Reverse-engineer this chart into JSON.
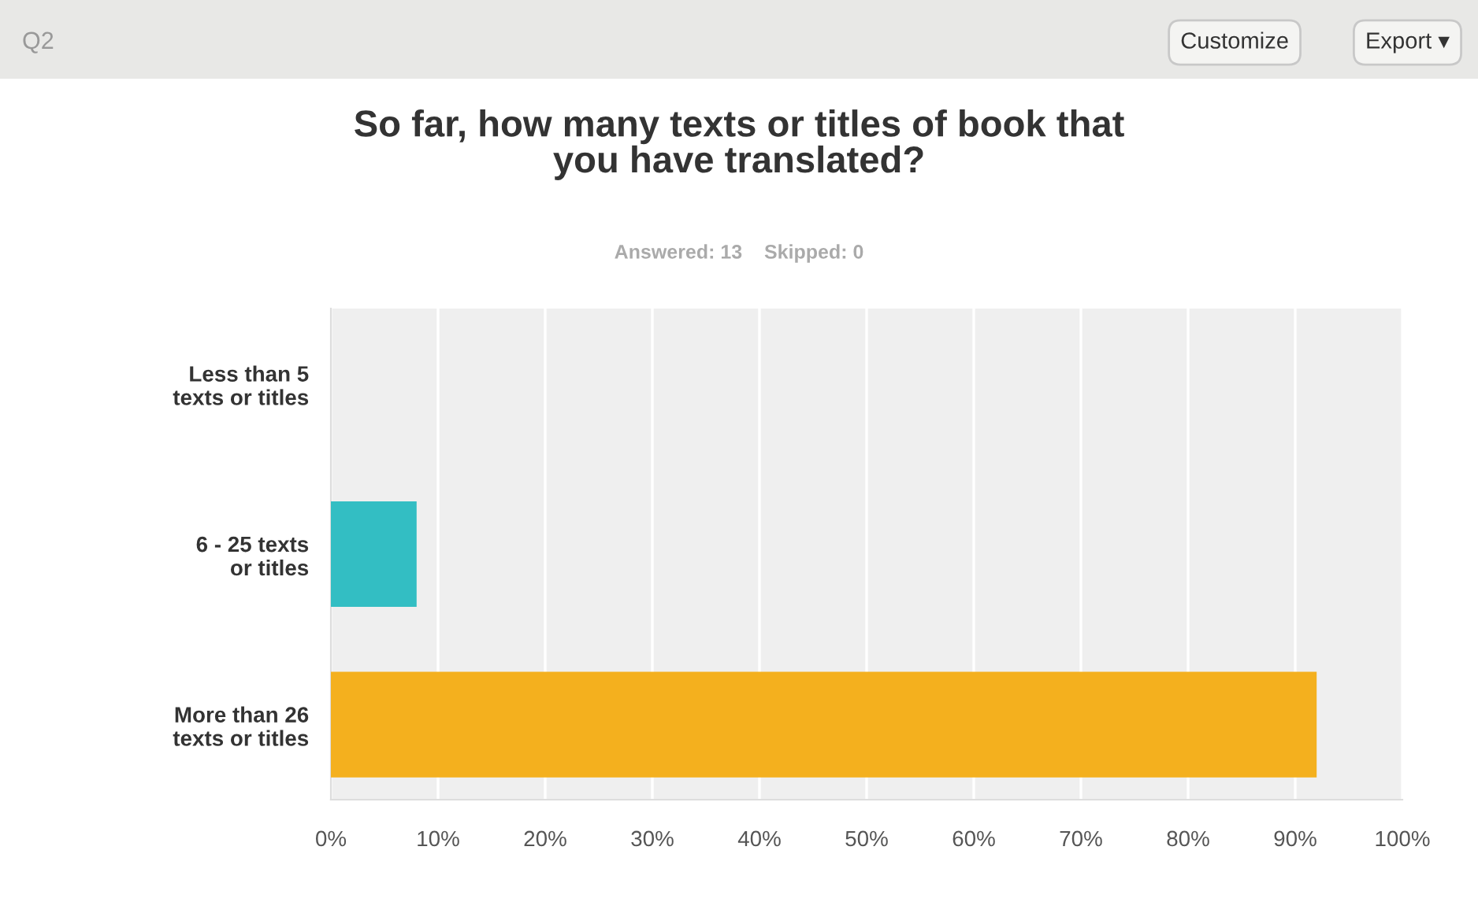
{
  "chart_data": {
    "type": "bar",
    "orientation": "horizontal",
    "title": "So far, how many texts or titles of book that\nyou have translated?",
    "subtitle": "Answered: 13    Skipped: 0",
    "annotations": [
      "Q2",
      "Customize",
      "Export ▾"
    ],
    "categories": [
      "Less than 5\ntexts or titles",
      "6 - 25 texts\nor titles",
      "More than 26\ntexts or titles"
    ],
    "values": [
      0,
      8,
      92
    ],
    "colors": [
      "#33bec3",
      "#33bec3",
      "#f4b01e"
    ],
    "xlim": [
      0,
      100
    ],
    "xticks": [
      {
        "value": 0,
        "label": "0%"
      },
      {
        "value": 10,
        "label": "10%"
      },
      {
        "value": 20,
        "label": "20%"
      },
      {
        "value": 30,
        "label": "30%"
      },
      {
        "value": 40,
        "label": "40%"
      },
      {
        "value": 50,
        "label": "50%"
      },
      {
        "value": 60,
        "label": "60%"
      },
      {
        "value": 70,
        "label": "70%"
      },
      {
        "value": 80,
        "label": "80%"
      },
      {
        "value": 90,
        "label": "90%"
      },
      {
        "value": 100,
        "label": "100%"
      }
    ],
    "grid": "x",
    "legend": false
  }
}
